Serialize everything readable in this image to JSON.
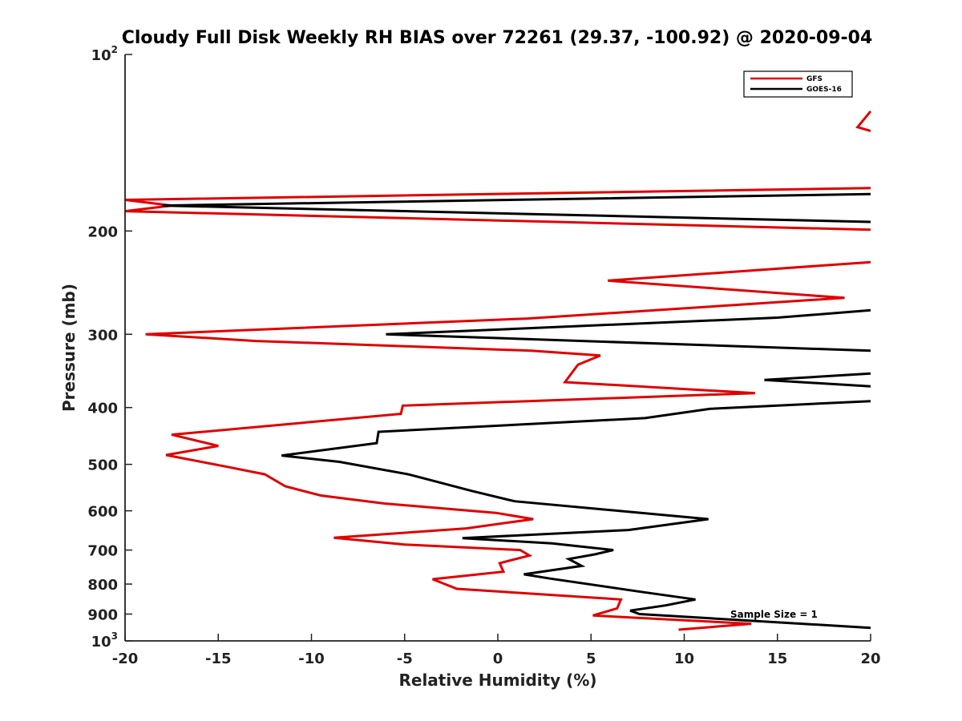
{
  "chart_data": {
    "type": "line",
    "title": "Cloudy Full Disk Weekly RH BIAS over 72261 (29.37, -100.92) @ 2020-09-04",
    "xlabel": "Relative Humidity (%)",
    "ylabel": "Pressure (mb)",
    "xlim": [
      -20,
      20
    ],
    "ylim": [
      100,
      1000
    ],
    "y_scale": "log",
    "y_reversed": true,
    "x_ticks": [
      "-20",
      "-15",
      "-10",
      "-5",
      "0",
      "5",
      "10",
      "15",
      "20"
    ],
    "y_ticks": [
      {
        "value": 100,
        "base": "10",
        "exp": "2"
      },
      {
        "value": 200,
        "label": "200"
      },
      {
        "value": 300,
        "label": "300"
      },
      {
        "value": 400,
        "label": "400"
      },
      {
        "value": 500,
        "label": "500"
      },
      {
        "value": 600,
        "label": "600"
      },
      {
        "value": 700,
        "label": "700"
      },
      {
        "value": 800,
        "label": "800"
      },
      {
        "value": 900,
        "label": "900"
      },
      {
        "value": 1000,
        "base": "10",
        "exp": "3"
      }
    ],
    "grid": false,
    "legend_position": "top-right",
    "annotation": "Sample Size = 1",
    "series": [
      {
        "name": "GFS",
        "color": "#e00000",
        "segments": [
          [
            [
              20,
              125
            ],
            [
              19.3,
              133
            ],
            [
              20,
              135
            ]
          ],
          [
            [
              20,
              169
            ],
            [
              -20,
              177
            ],
            [
              -17.5,
              181
            ],
            [
              -20,
              185
            ],
            [
              20,
              199
            ]
          ],
          [
            [
              20,
              226
            ],
            [
              5.9,
              243
            ],
            [
              18.6,
              260
            ],
            [
              1.6,
              282
            ],
            [
              -18.9,
              300
            ],
            [
              -13,
              308
            ],
            [
              1.8,
              320
            ],
            [
              5.5,
              326
            ],
            [
              4.3,
              338
            ],
            [
              3.6,
              362
            ],
            [
              13.8,
              378
            ],
            [
              -5.1,
              397
            ],
            [
              -5.2,
              410
            ],
            [
              -17.5,
              445
            ],
            [
              -15,
              465
            ],
            [
              -17.8,
              482
            ],
            [
              -14.5,
              505
            ],
            [
              -12.5,
              520
            ],
            [
              -11.4,
              545
            ],
            [
              -9.5,
              565
            ],
            [
              -6.1,
              583
            ],
            [
              -0.1,
              605
            ],
            [
              1.9,
              620
            ],
            [
              -1.7,
              643
            ],
            [
              -8.8,
              667
            ],
            [
              -5,
              685
            ],
            [
              1.2,
              700
            ],
            [
              1.7,
              715
            ],
            [
              0.1,
              737
            ],
            [
              0.3,
              762
            ],
            [
              -3.5,
              785
            ],
            [
              -2.2,
              815
            ],
            [
              6.6,
              850
            ],
            [
              6.4,
              880
            ],
            [
              5.1,
              905
            ],
            [
              13.6,
              935
            ],
            [
              9.7,
              957
            ]
          ]
        ]
      },
      {
        "name": "GOES-16",
        "color": "#000000",
        "segments": [
          [
            [
              20,
              173
            ],
            [
              -18,
              181
            ],
            [
              20,
              193
            ]
          ],
          [
            [
              20,
              273
            ],
            [
              15,
              281
            ],
            [
              -6,
              300
            ],
            [
              20,
              320
            ]
          ],
          [
            [
              20,
              350
            ],
            [
              14.3,
              359
            ],
            [
              20,
              368
            ]
          ],
          [
            [
              20,
              390
            ],
            [
              11.4,
              402
            ],
            [
              7.9,
              417
            ],
            [
              -6.4,
              440
            ],
            [
              -6.5,
              460
            ],
            [
              -11.6,
              483
            ],
            [
              -8.5,
              495
            ],
            [
              -4.8,
              520
            ],
            [
              -3.3,
              535
            ],
            [
              -1.4,
              555
            ],
            [
              0.9,
              578
            ],
            [
              11.3,
              620
            ],
            [
              7,
              647
            ],
            [
              -1.9,
              668
            ],
            [
              2.9,
              682
            ],
            [
              6.2,
              700
            ],
            [
              5.2,
              712
            ],
            [
              3.8,
              725
            ],
            [
              4.5,
              745
            ],
            [
              1.4,
              770
            ],
            [
              2.8,
              783
            ],
            [
              7.7,
              825
            ],
            [
              10.6,
              850
            ],
            [
              9,
              870
            ],
            [
              7.1,
              888
            ],
            [
              7.6,
              900
            ],
            [
              20,
              950
            ]
          ]
        ]
      }
    ]
  }
}
